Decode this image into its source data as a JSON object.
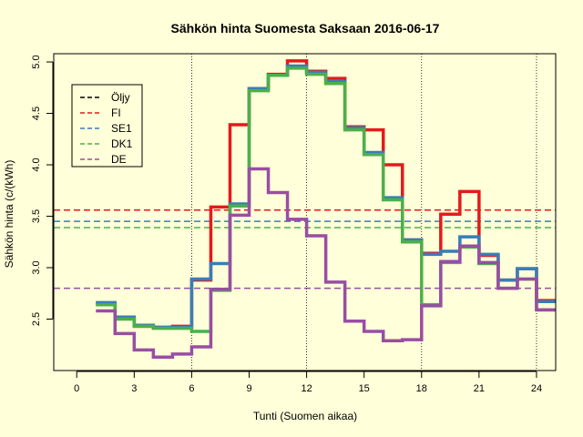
{
  "chart_data": {
    "type": "line",
    "step": true,
    "title": "Sähkön hinta Suomesta Saksaan 2016-06-17",
    "xlabel": "Tunti (Suomen aikaa)",
    "ylabel": "Sähkön hinta (c/(kWh)",
    "xlim": [
      -1.2,
      25
    ],
    "ylim": [
      2.0,
      5.08
    ],
    "xticks": [
      0,
      3,
      6,
      9,
      12,
      15,
      18,
      21,
      24
    ],
    "xtick_labels": [
      "0",
      "3",
      "6",
      "9",
      "12",
      "15",
      "18",
      "21",
      "24"
    ],
    "yticks": [
      2.5,
      3.0,
      3.5,
      4.0,
      4.5,
      5.0
    ],
    "ytick_labels": [
      "2.5",
      "3.0",
      "3.5",
      "4.0",
      "4.5",
      "5.0"
    ],
    "vlines": [
      6,
      12,
      18,
      24
    ],
    "x": [
      1,
      2,
      3,
      4,
      5,
      6,
      7,
      8,
      9,
      10,
      11,
      12,
      13,
      14,
      15,
      16,
      17,
      18,
      19,
      20,
      21,
      22,
      23,
      24,
      25
    ],
    "series": [
      {
        "name": "FI",
        "color": "#E41A1C",
        "values": [
          2.65,
          2.51,
          2.43,
          2.42,
          2.43,
          2.88,
          3.59,
          4.39,
          4.74,
          4.88,
          5.01,
          4.91,
          4.84,
          4.37,
          4.34,
          4.0,
          3.27,
          3.14,
          3.52,
          3.74,
          3.12,
          2.88,
          2.99,
          2.68,
          2.68
        ]
      },
      {
        "name": "SE1",
        "color": "#377EB8",
        "values": [
          2.66,
          2.52,
          2.44,
          2.42,
          2.42,
          2.89,
          3.04,
          3.62,
          4.74,
          4.87,
          4.96,
          4.9,
          4.81,
          4.36,
          4.12,
          3.68,
          3.27,
          3.13,
          3.16,
          3.3,
          3.13,
          2.88,
          2.99,
          2.67,
          2.67
        ]
      },
      {
        "name": "DK1",
        "color": "#4DAF4A",
        "values": [
          2.64,
          2.5,
          2.43,
          2.41,
          2.41,
          2.38,
          2.78,
          3.6,
          4.72,
          4.87,
          4.94,
          4.88,
          4.79,
          4.34,
          4.1,
          3.66,
          3.25,
          2.64,
          3.05,
          3.2,
          3.04,
          2.8,
          2.89,
          2.59,
          2.59
        ]
      },
      {
        "name": "DE",
        "color": "#984EA3",
        "values": [
          2.58,
          2.36,
          2.2,
          2.13,
          2.16,
          2.23,
          2.79,
          3.51,
          3.96,
          3.73,
          3.47,
          3.31,
          2.86,
          2.48,
          2.38,
          2.29,
          2.3,
          2.63,
          3.06,
          3.21,
          3.05,
          2.8,
          2.89,
          2.59,
          2.59
        ]
      }
    ],
    "averages": [
      {
        "name": "FI",
        "value": 3.56
      },
      {
        "name": "SE1",
        "value": 3.45
      },
      {
        "name": "DK1",
        "value": 3.39
      },
      {
        "name": "DE",
        "value": 2.8
      }
    ],
    "legend": {
      "placement": "top-left",
      "items": [
        {
          "label": "Öljy",
          "color": "#000000"
        },
        {
          "label": "FI",
          "color": "#E41A1C"
        },
        {
          "label": "SE1",
          "color": "#377EB8"
        },
        {
          "label": "DK1",
          "color": "#4DAF4A"
        },
        {
          "label": "DE",
          "color": "#984EA3"
        }
      ]
    },
    "background": "#FFFFD9"
  }
}
